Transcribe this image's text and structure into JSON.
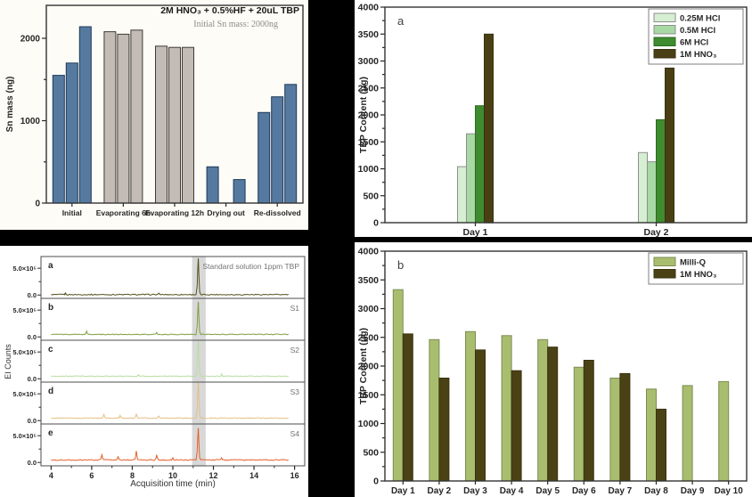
{
  "figure": {
    "background": "#000000",
    "panel_background": "#ffffff"
  },
  "chart_data": [
    {
      "id": "sn_mass_bars",
      "type": "bar",
      "title": "2M HNO₃ + 0.5%HF + 20uL TBP",
      "subtitle": "Initial Sn mass: 2000ng",
      "ylabel": "Sn mass (ng)",
      "ylim": [
        0,
        2400
      ],
      "ytick_major": 1000,
      "ytick_minor": 500,
      "grid": false,
      "categories": [
        "Initial",
        "Evaporating 6h",
        "Evaporating 12h",
        "Drying out",
        "Re-dissolved"
      ],
      "groups": [
        {
          "category": "Initial",
          "palette": "blue",
          "values": [
            1550,
            1700,
            2140
          ]
        },
        {
          "category": "Evaporating 6h",
          "palette": "gray",
          "values": [
            2080,
            2050,
            2100
          ]
        },
        {
          "category": "Evaporating 12h",
          "palette": "gray",
          "values": [
            1905,
            1890,
            1890
          ]
        },
        {
          "category": "Drying out",
          "palette": "blue",
          "values": [
            440,
            null,
            285
          ]
        },
        {
          "category": "Re-dissolved",
          "palette": "blue",
          "values": [
            1100,
            1290,
            1440
          ]
        }
      ],
      "palettes": {
        "blue": {
          "fill": "#56799f",
          "edge": "#1d3a5a"
        },
        "gray": {
          "fill": "#c3bbb5",
          "edge": "#3f3a35"
        }
      }
    },
    {
      "id": "gc_chromatograms",
      "type": "line",
      "xlabel": "Acquisition time (min)",
      "ylabel": "EI Counts",
      "xlim": [
        3.5,
        16.5
      ],
      "xticks": [
        4,
        6,
        8,
        10,
        12,
        14,
        16
      ],
      "ytick_labels": [
        "5.0×10⁵",
        "0.0"
      ],
      "highlight_band": [
        10.95,
        11.62
      ],
      "peak_retention_min": 11.25,
      "panels": [
        {
          "letter": "a",
          "label": "Standard solution 1ppm TBP",
          "color": "#55521d",
          "baseline": 0.09,
          "peak_height": 0.95,
          "noise": 0.012,
          "minor_peaks": [
            [
              4.7,
              0.03
            ],
            [
              9.3,
              0.03
            ]
          ]
        },
        {
          "letter": "b",
          "label": "S1",
          "color": "#7fa041",
          "baseline": 0.14,
          "peak_height": 0.92,
          "noise": 0.01,
          "minor_peaks": [
            [
              5.75,
              0.07
            ],
            [
              9.2,
              0.05
            ]
          ]
        },
        {
          "letter": "c",
          "label": "S2",
          "color": "#b8dd9d",
          "baseline": 0.14,
          "peak_height": 1.05,
          "noise": 0.009,
          "minor_peaks": [
            [
              8.3,
              0.04
            ],
            [
              12.4,
              0.05
            ]
          ]
        },
        {
          "letter": "d",
          "label": "S3",
          "color": "#e5bf85",
          "baseline": 0.14,
          "peak_height": 1.05,
          "noise": 0.01,
          "minor_peaks": [
            [
              6.6,
              0.08
            ],
            [
              7.4,
              0.06
            ],
            [
              8.2,
              0.1
            ],
            [
              9.3,
              0.06
            ]
          ]
        },
        {
          "letter": "e",
          "label": "S4",
          "color": "#e4602a",
          "baseline": 0.14,
          "peak_height": 0.9,
          "noise": 0.012,
          "minor_peaks": [
            [
              6.5,
              0.12
            ],
            [
              7.3,
              0.08
            ],
            [
              8.2,
              0.22
            ],
            [
              9.2,
              0.12
            ],
            [
              10.0,
              0.05
            ],
            [
              12.4,
              0.05
            ]
          ]
        }
      ]
    },
    {
      "id": "tbp_acid_comparison",
      "type": "bar",
      "panel_label": "a",
      "ylabel": "TBP Content (μg)",
      "ylim": [
        0,
        4000
      ],
      "ytick_major": 500,
      "ytick_minor": 250,
      "grid": false,
      "legend_position": "top-right",
      "categories": [
        "Day 1",
        "Day 2"
      ],
      "series": [
        {
          "name": "0.25M HCl",
          "fill": "#d6eed2",
          "edge": "#8f8f8f",
          "values": [
            1040,
            1300
          ]
        },
        {
          "name": "0.5M HCl",
          "fill": "#a8d8a4",
          "edge": "#8f8f8f",
          "values": [
            1650,
            1130
          ]
        },
        {
          "name": "6M HCl",
          "fill": "#3f8b2f",
          "edge": "#2f6b22",
          "values": [
            2170,
            1910
          ]
        },
        {
          "name": "1M HNO₃",
          "fill": "#4a3f14",
          "edge": "#3a310f",
          "values": [
            3500,
            2870
          ]
        }
      ]
    },
    {
      "id": "tbp_day_series",
      "type": "bar",
      "panel_label": "b",
      "ylabel": "TBP Content (μg)",
      "ylim": [
        0,
        4000
      ],
      "ytick_major": 500,
      "ytick_minor": 250,
      "grid": false,
      "legend_position": "top-right",
      "categories": [
        "Day 1",
        "Day 2",
        "Day 3",
        "Day 4",
        "Day 5",
        "Day 6",
        "Day 7",
        "Day 8",
        "Day 9",
        "Day 10"
      ],
      "series": [
        {
          "name": "Milli-Q",
          "fill": "#a9bd6e",
          "edge": "#7d8d55",
          "values": [
            3330,
            2460,
            2600,
            2530,
            2460,
            1980,
            1790,
            1600,
            1660,
            1730
          ]
        },
        {
          "name": "1M HNO₃",
          "fill": "#4a4115",
          "edge": "#3a330f",
          "values": [
            2560,
            1790,
            2280,
            1920,
            2330,
            2100,
            1870,
            1250,
            null,
            null
          ]
        }
      ]
    }
  ]
}
